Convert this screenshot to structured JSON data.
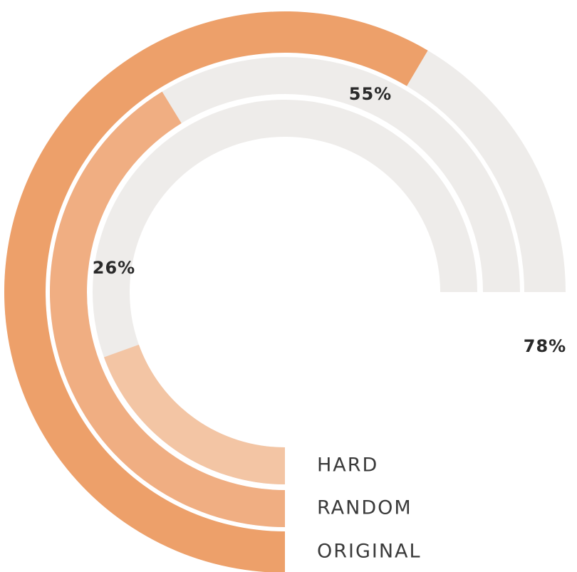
{
  "chart_data": {
    "type": "radial-bar",
    "title": "",
    "series": [
      {
        "name": "HARD",
        "value": 26,
        "value_label": "26%",
        "color": "#f3c5a4"
      },
      {
        "name": "RANDOM",
        "value": 55,
        "value_label": "55%",
        "color": "#f0ae82"
      },
      {
        "name": "ORIGINAL",
        "value": 78,
        "value_label": "78%",
        "color": "#eda06a"
      }
    ],
    "max": 100,
    "track_color": "#eeecea",
    "legend_placement": "bottom-right"
  }
}
